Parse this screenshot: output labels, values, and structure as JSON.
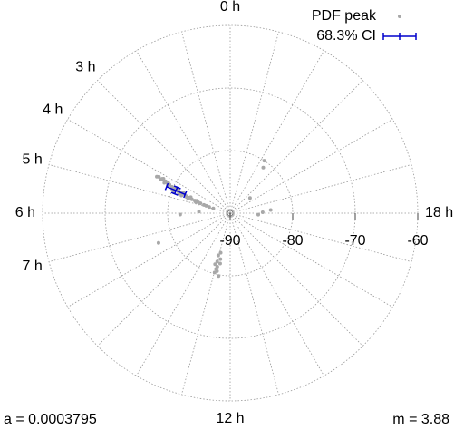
{
  "chart_data": {
    "type": "polar-scatter",
    "series": [
      {
        "name": "PDF peak",
        "color": "#a8a8a8",
        "x": [
          4.2,
          4.22,
          4.25,
          4.18,
          4.28,
          4.3,
          4.33,
          4.35,
          4.38,
          4.4,
          4.27,
          4.42,
          4.45,
          4.47,
          4.5,
          4.52,
          4.48,
          4.55,
          4.58,
          4.6,
          4.62,
          4.65,
          4.68,
          4.7,
          4.72,
          4.75,
          4.78,
          4.8,
          4.83,
          4.86,
          4.9,
          4.95,
          4.37,
          4.43,
          4.57,
          4.63,
          4.32,
          4.24,
          4.53,
          4.67,
          10.9,
          11.0,
          11.05,
          11.1,
          11.15,
          11.02,
          11.2,
          10.95,
          11.1,
          11.25,
          11.3,
          21.6,
          21.8,
          18.1,
          18.3,
          17.8,
          7.5,
          5.8,
          6.1,
          20.5
        ],
        "values": [
          -77.2,
          -77.8,
          -78.5,
          -78.0,
          -77.6,
          -78.9,
          -79.3,
          -78.4,
          -79.8,
          -80.2,
          -79.0,
          -79.1,
          -80.6,
          -81.0,
          -80.0,
          -81.5,
          -82.0,
          -81.8,
          -82.4,
          -81.2,
          -83.0,
          -82.6,
          -83.5,
          -84.0,
          -82.9,
          -84.6,
          -85.0,
          -84.2,
          -85.6,
          -86.0,
          -86.5,
          -87.2,
          -80.9,
          -81.8,
          -80.3,
          -84.3,
          -80.5,
          -76.9,
          -83.2,
          -81.7,
          -81.5,
          -82.0,
          -80.8,
          -81.2,
          -80.5,
          -80.2,
          -82.5,
          -83.0,
          -83.5,
          -81.8,
          -79.8,
          -81.0,
          -80.0,
          -84.8,
          -83.5,
          -85.5,
          -77.6,
          -85.0,
          -82.0,
          -86.0
        ]
      },
      {
        "name": "68.3% CI",
        "color": "#0000cc",
        "errorbar": true,
        "x": [
          4.49
        ],
        "values": [
          -80.6
        ],
        "xerr": [
          0.23
        ],
        "yerr": [
          1.6
        ]
      }
    ],
    "rlim": [
      -90,
      -60
    ],
    "rticks": [
      -90,
      -80,
      -70,
      -60
    ],
    "thetaticks": [
      {
        "value": 0,
        "label": "0 h"
      },
      {
        "value": 3,
        "label": "3 h"
      },
      {
        "value": 4,
        "label": "4 h"
      },
      {
        "value": 5,
        "label": "5 h"
      },
      {
        "value": 6,
        "label": "6 h"
      },
      {
        "value": 7,
        "label": "7 h"
      },
      {
        "value": 12,
        "label": "12 h"
      },
      {
        "value": 18,
        "label": "18 h"
      }
    ],
    "theta_grid": [
      0,
      1,
      2,
      3,
      4,
      5,
      6,
      7,
      8,
      9,
      10,
      11,
      12,
      13,
      14,
      15,
      16,
      17,
      18,
      19,
      20,
      21,
      22,
      23
    ],
    "theta_period": 24,
    "legend": "upper-right",
    "annotations": [
      "a = 0.0003795",
      "m = 3.88"
    ]
  }
}
